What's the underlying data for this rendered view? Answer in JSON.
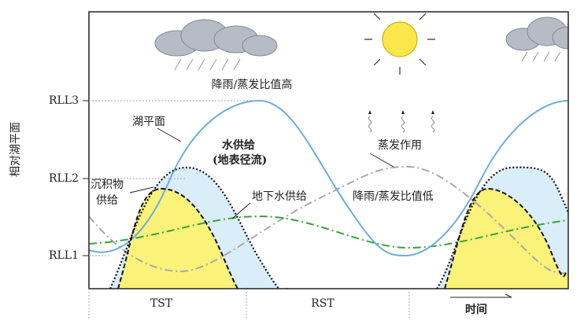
{
  "axis": {
    "label": "相对湖平面",
    "levels": [
      "RLL3",
      "RLL2",
      "RLL1"
    ]
  },
  "annotations": {
    "high_ratio": "降雨/蒸发比值高",
    "lake_level": "湖平面",
    "water_supply": "水供给",
    "surface_runoff": "(地表径流)",
    "sediment_1": "沉积物",
    "sediment_2": "供给",
    "groundwater": "地下水供给",
    "evaporation": "蒸发作用",
    "low_ratio": "降雨/蒸发比值低"
  },
  "phases": [
    "TST",
    "RST"
  ],
  "time": "时间"
}
